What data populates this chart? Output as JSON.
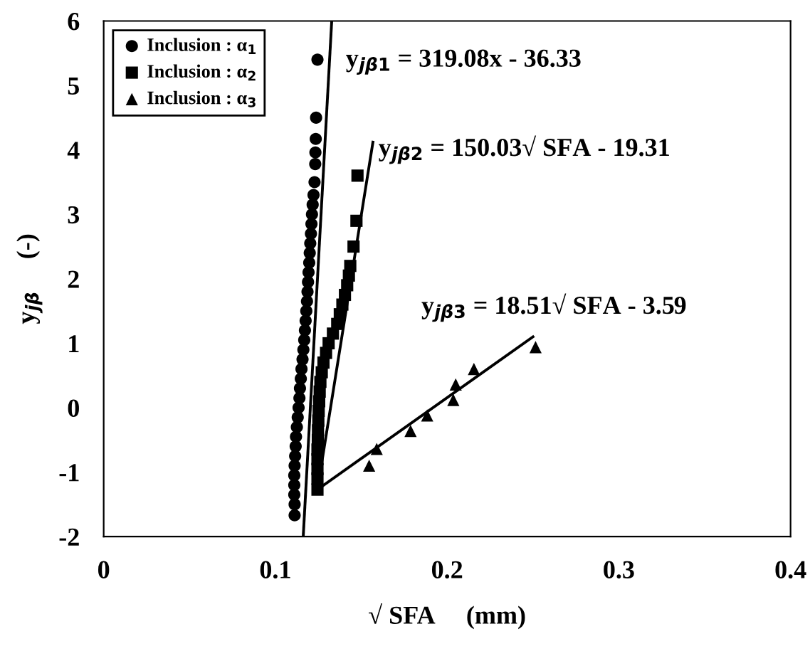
{
  "chart_data": {
    "type": "scatter",
    "xlabel": "√ SFA     (mm)",
    "ylabel": "y$_{jβ}$     (-)",
    "xlim": [
      0,
      0.4
    ],
    "xticks": [
      0,
      0.1,
      0.2,
      0.3,
      0.4
    ],
    "ylim": [
      -2,
      6
    ],
    "yticks": [
      -2,
      -1,
      0,
      1,
      2,
      3,
      4,
      5,
      6
    ],
    "grid": false,
    "legend": "top left",
    "annotations": [
      "y$_{jβ1}$ = 319.08x - 36.33",
      "y$_{jβ2}$ = 150.03√ SFA - 19.31",
      "y$_{jβ3}$ = 18.51√ SFA - 3.59"
    ],
    "series": [
      {
        "name": "Inclusion : α$_{1}$",
        "color": "#000000",
        "marker": "circle",
        "x": [
          0.1112,
          0.1112,
          0.111,
          0.111,
          0.111,
          0.1112,
          0.1115,
          0.1118,
          0.112,
          0.1125,
          0.113,
          0.1135,
          0.114,
          0.1143,
          0.1148,
          0.1152,
          0.1158,
          0.1163,
          0.1168,
          0.1172,
          0.1176,
          0.118,
          0.1184,
          0.1187,
          0.119,
          0.1193,
          0.1197,
          0.12,
          0.1203,
          0.1207,
          0.121,
          0.1213,
          0.1217,
          0.1222,
          0.1228,
          0.1232,
          0.1233,
          0.1235,
          0.1237,
          0.1245
        ],
        "values": [
          -1.67,
          -1.5,
          -1.35,
          -1.2,
          -1.05,
          -0.9,
          -0.75,
          -0.6,
          -0.45,
          -0.3,
          -0.15,
          0,
          0.15,
          0.3,
          0.45,
          0.6,
          0.75,
          0.9,
          1.05,
          1.2,
          1.35,
          1.5,
          1.65,
          1.8,
          1.95,
          2.1,
          2.25,
          2.4,
          2.55,
          2.7,
          2.85,
          3.0,
          3.15,
          3.3,
          3.5,
          3.78,
          3.96,
          4.17,
          4.5,
          5.4
        ]
      },
      {
        "name": "Inclusion : α$_{2}$",
        "color": "#000000",
        "marker": "square",
        "x": [
          0.1245,
          0.1245,
          0.1245,
          0.1245,
          0.1245,
          0.1247,
          0.1248,
          0.125,
          0.1252,
          0.1255,
          0.1258,
          0.1262,
          0.127,
          0.128,
          0.1295,
          0.131,
          0.1335,
          0.136,
          0.1375,
          0.139,
          0.1405,
          0.1418,
          0.1428,
          0.1436,
          0.1455,
          0.1472,
          0.1478
        ],
        "values": [
          -1.27,
          -1.1,
          -0.95,
          -0.8,
          -0.65,
          -0.5,
          -0.35,
          -0.2,
          -0.05,
          0.1,
          0.25,
          0.4,
          0.55,
          0.7,
          0.85,
          1.0,
          1.15,
          1.3,
          1.45,
          1.6,
          1.75,
          1.9,
          2.05,
          2.2,
          2.5,
          2.9,
          3.6
        ]
      },
      {
        "name": "Inclusion : α$_{3}$",
        "color": "#000000",
        "marker": "triangle",
        "x": [
          0.1546,
          0.159,
          0.1787,
          0.1884,
          0.2036,
          0.205,
          0.2156,
          0.2515
        ],
        "values": [
          -0.9,
          -0.64,
          -0.36,
          -0.12,
          0.12,
          0.36,
          0.6,
          0.94
        ]
      },
      {
        "type": "line",
        "color": "#000000",
        "marker": "none",
        "x": [
          0.1162,
          0.1328
        ],
        "values": [
          -2,
          6
        ]
      },
      {
        "type": "line",
        "color": "#000000",
        "marker": "none",
        "x": [
          0.1245,
          0.1568
        ],
        "values": [
          -1.27,
          4.12
        ]
      },
      {
        "type": "line",
        "color": "#000000",
        "marker": "none",
        "x": [
          0.1245,
          0.25
        ],
        "values": [
          -1.27,
          1.1
        ]
      }
    ]
  }
}
